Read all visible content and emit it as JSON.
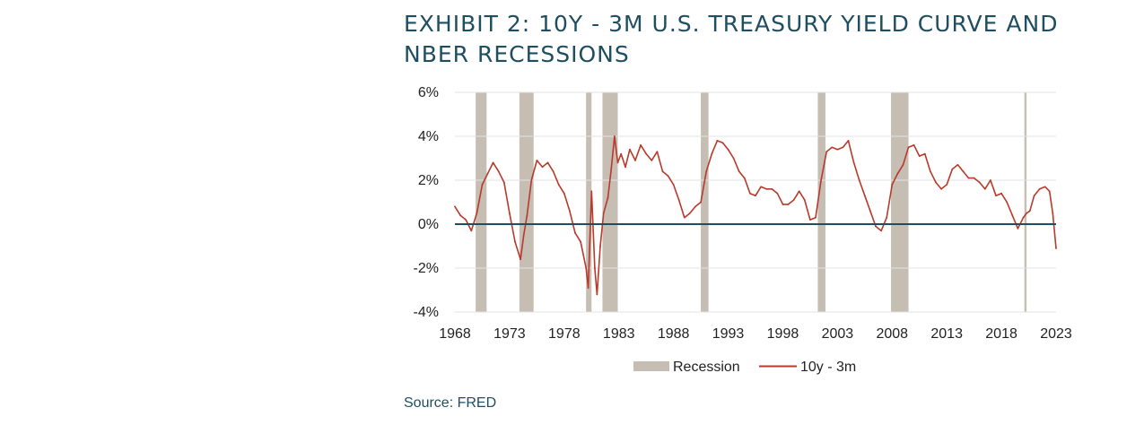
{
  "title_line1": "EXHIBIT 2: 10Y - 3M U.S. TREASURY YIELD CURVE AND",
  "title_line2": "NBER RECESSIONS",
  "source": "Source: FRED",
  "colors": {
    "title": "#1f4e60",
    "line": "#b83a2b",
    "recession": "#c6bdb3",
    "zero_line": "#1f4e60"
  },
  "chart_data": {
    "type": "line",
    "xlim": [
      1968,
      2023
    ],
    "ylim": [
      -4,
      6
    ],
    "y_ticks": [
      6,
      4,
      2,
      0,
      -2,
      -4
    ],
    "y_tick_labels": [
      "6%",
      "4%",
      "2%",
      "0%",
      "-2%",
      "-4%"
    ],
    "x_ticks": [
      1968,
      1973,
      1978,
      1983,
      1988,
      1993,
      1998,
      2003,
      2008,
      2013,
      2018,
      2023
    ],
    "x_tick_labels": [
      "1968",
      "1973",
      "1978",
      "1983",
      "1988",
      "1993",
      "1998",
      "2003",
      "2008",
      "2013",
      "2018",
      "2023"
    ],
    "grid": "horizontal",
    "legend_position": "bottom",
    "legend": [
      "Recession",
      "10y - 3m"
    ],
    "recessions": [
      [
        1969.9,
        1970.9
      ],
      [
        1973.9,
        1975.2
      ],
      [
        1980.0,
        1980.5
      ],
      [
        1981.5,
        1982.9
      ],
      [
        1990.5,
        1991.2
      ],
      [
        2001.2,
        2001.9
      ],
      [
        2007.9,
        2009.5
      ],
      [
        2020.1,
        2020.3
      ]
    ],
    "series": [
      {
        "name": "10y - 3m",
        "x": [
          1968.0,
          1968.5,
          1969.0,
          1969.5,
          1970.0,
          1970.5,
          1971.0,
          1971.5,
          1972.0,
          1972.5,
          1973.0,
          1973.5,
          1974.0,
          1974.3,
          1974.6,
          1975.0,
          1975.5,
          1976.0,
          1976.5,
          1977.0,
          1977.5,
          1978.0,
          1978.5,
          1979.0,
          1979.5,
          1980.0,
          1980.2,
          1980.5,
          1980.8,
          1981.0,
          1981.3,
          1981.6,
          1982.0,
          1982.3,
          1982.6,
          1982.9,
          1983.2,
          1983.6,
          1984.0,
          1984.5,
          1985.0,
          1985.5,
          1986.0,
          1986.5,
          1987.0,
          1987.5,
          1988.0,
          1988.5,
          1989.0,
          1989.5,
          1990.0,
          1990.5,
          1991.0,
          1991.5,
          1992.0,
          1992.5,
          1993.0,
          1993.5,
          1994.0,
          1994.5,
          1995.0,
          1995.5,
          1996.0,
          1996.5,
          1997.0,
          1997.5,
          1998.0,
          1998.5,
          1999.0,
          1999.5,
          2000.0,
          2000.5,
          2001.0,
          2001.5,
          2002.0,
          2002.5,
          2003.0,
          2003.5,
          2004.0,
          2004.5,
          2005.0,
          2005.5,
          2006.0,
          2006.5,
          2007.0,
          2007.5,
          2008.0,
          2008.5,
          2009.0,
          2009.5,
          2010.0,
          2010.5,
          2011.0,
          2011.5,
          2012.0,
          2012.5,
          2013.0,
          2013.5,
          2014.0,
          2014.5,
          2015.0,
          2015.5,
          2016.0,
          2016.5,
          2017.0,
          2017.5,
          2018.0,
          2018.5,
          2019.0,
          2019.5,
          2020.0,
          2020.3,
          2020.6,
          2021.0,
          2021.5,
          2022.0,
          2022.4,
          2022.7,
          2023.0
        ],
        "y": [
          0.8,
          0.4,
          0.2,
          -0.3,
          0.5,
          1.8,
          2.3,
          2.8,
          2.4,
          1.9,
          0.5,
          -0.8,
          -1.6,
          -0.5,
          0.4,
          2.0,
          2.9,
          2.6,
          2.8,
          2.4,
          1.8,
          1.4,
          0.6,
          -0.4,
          -0.8,
          -2.0,
          -2.9,
          1.5,
          -2.0,
          -3.2,
          -1.0,
          0.5,
          1.2,
          2.5,
          4.0,
          2.8,
          3.2,
          2.6,
          3.4,
          2.9,
          3.6,
          3.2,
          2.9,
          3.3,
          2.4,
          2.2,
          1.8,
          1.1,
          0.3,
          0.5,
          0.8,
          1.0,
          2.4,
          3.2,
          3.8,
          3.7,
          3.4,
          3.0,
          2.4,
          2.1,
          1.4,
          1.3,
          1.7,
          1.6,
          1.6,
          1.4,
          0.9,
          0.9,
          1.1,
          1.5,
          1.1,
          0.2,
          0.3,
          2.0,
          3.3,
          3.5,
          3.4,
          3.5,
          3.8,
          2.8,
          2.0,
          1.3,
          0.6,
          -0.1,
          -0.3,
          0.3,
          1.8,
          2.3,
          2.7,
          3.5,
          3.6,
          3.1,
          3.2,
          2.4,
          1.9,
          1.6,
          1.8,
          2.5,
          2.7,
          2.4,
          2.1,
          2.1,
          1.9,
          1.6,
          2.0,
          1.3,
          1.4,
          1.0,
          0.4,
          -0.2,
          0.3,
          0.5,
          0.6,
          1.3,
          1.6,
          1.7,
          1.5,
          0.5,
          -1.1
        ]
      }
    ]
  }
}
